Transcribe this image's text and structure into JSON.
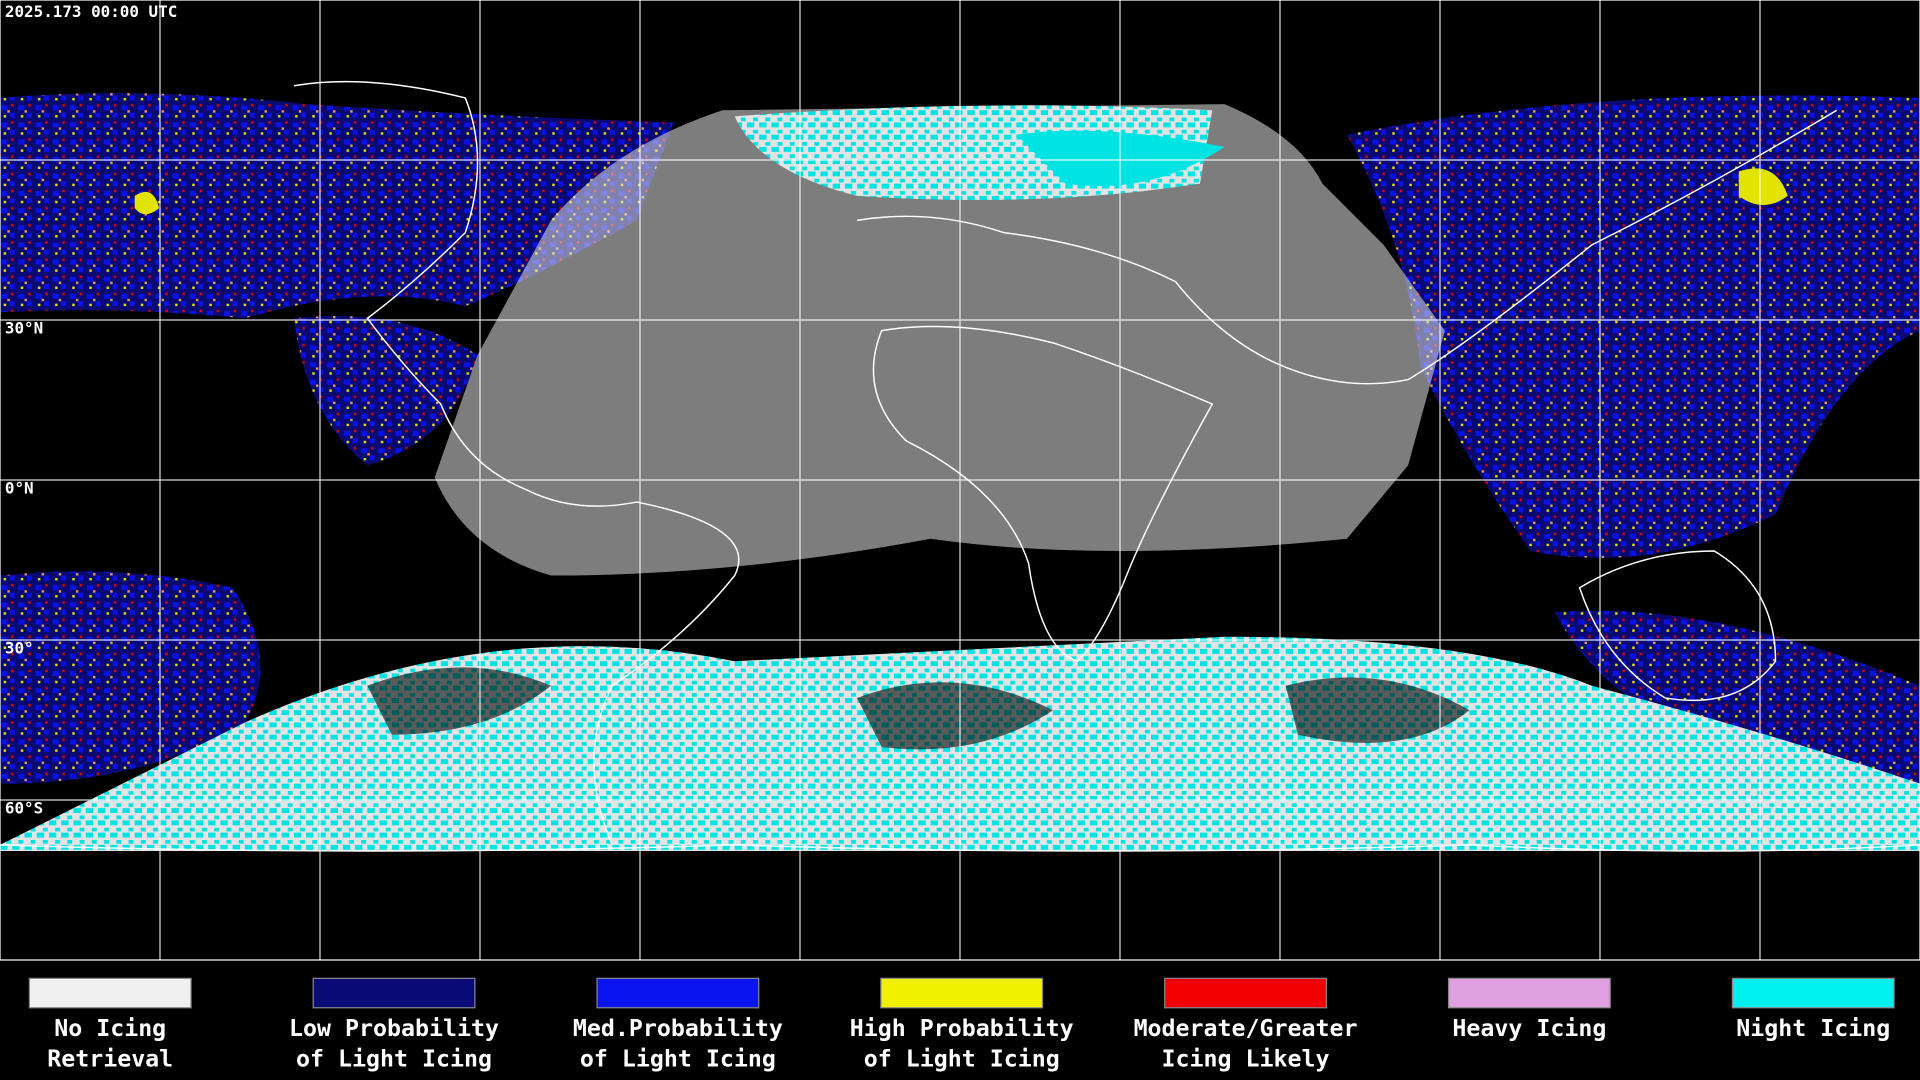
{
  "header": {
    "timestamp": "2025.173 00:00 UTC"
  },
  "map": {
    "latitude_labels": [
      "30°N",
      "0°N",
      "30°",
      "60°S"
    ]
  },
  "legend": {
    "items": [
      {
        "label": [
          "No Icing",
          "Retrieval"
        ],
        "color": "#f0f0f0"
      },
      {
        "label": [
          "Low Probability",
          "of Light Icing"
        ],
        "color": "#0a0a78"
      },
      {
        "label": [
          "Med.Probability",
          "of Light Icing"
        ],
        "color": "#0a14f0"
      },
      {
        "label": [
          "High Probability",
          "of Light Icing"
        ],
        "color": "#f0f000"
      },
      {
        "label": [
          "Moderate/Greater",
          "Icing Likely"
        ],
        "color": "#f00000"
      },
      {
        "label": [
          "Heavy Icing",
          ""
        ],
        "color": "#e0a0e0"
      },
      {
        "label": [
          "Night Icing",
          ""
        ],
        "color": "#00f0f0"
      }
    ]
  }
}
